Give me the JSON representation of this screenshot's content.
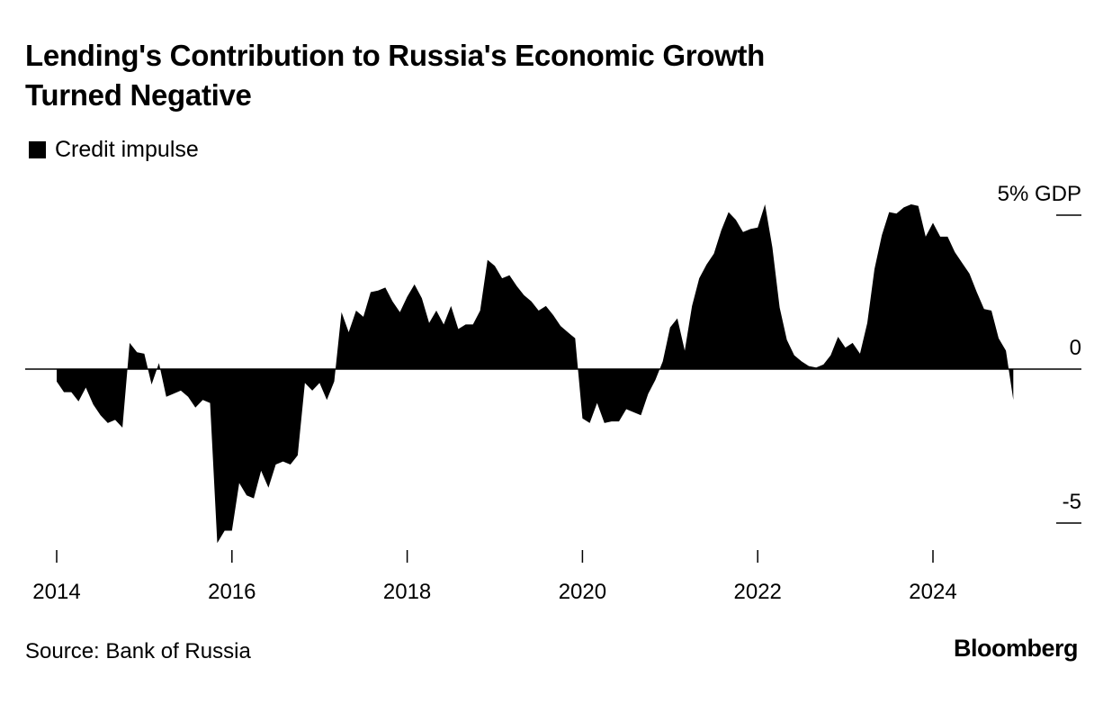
{
  "header": {
    "title_line1": "Lending's Contribution to Russia's Economic Growth",
    "title_line2": "Turned Negative"
  },
  "footer": {
    "source": "Source: Bank of Russia",
    "brand": "Bloomberg"
  },
  "chart_data": {
    "type": "area",
    "title": "Lending's Contribution to Russia's Economic Growth Turned Negative",
    "legend": [
      {
        "name": "Credit impulse",
        "color": "#000000"
      }
    ],
    "legend_position": "top-left",
    "ylabel": "% GDP",
    "ylim": [
      -6.3,
      5.5
    ],
    "yticks": [
      {
        "value": 5,
        "label": "5% GDP"
      },
      {
        "value": 0,
        "label": "0"
      },
      {
        "value": -5,
        "label": "-5"
      }
    ],
    "xlim": [
      2013.65,
      2025.6
    ],
    "xticks": [
      {
        "value": 2014,
        "label": "2014"
      },
      {
        "value": 2016,
        "label": "2016"
      },
      {
        "value": 2018,
        "label": "2018"
      },
      {
        "value": 2020,
        "label": "2020"
      },
      {
        "value": 2022,
        "label": "2022"
      },
      {
        "value": 2024,
        "label": "2024"
      }
    ],
    "axis_position": "right",
    "grid": false,
    "series": [
      {
        "name": "Credit impulse",
        "color": "#000000",
        "x": [
          2014.0,
          2014.083,
          2014.167,
          2014.25,
          2014.333,
          2014.417,
          2014.5,
          2014.583,
          2014.667,
          2014.75,
          2014.833,
          2014.917,
          2015.0,
          2015.083,
          2015.167,
          2015.25,
          2015.333,
          2015.417,
          2015.5,
          2015.583,
          2015.667,
          2015.75,
          2015.833,
          2015.917,
          2016.0,
          2016.083,
          2016.167,
          2016.25,
          2016.333,
          2016.417,
          2016.5,
          2016.583,
          2016.667,
          2016.75,
          2016.833,
          2016.917,
          2017.0,
          2017.083,
          2017.167,
          2017.25,
          2017.333,
          2017.417,
          2017.5,
          2017.583,
          2017.667,
          2017.75,
          2017.833,
          2017.917,
          2018.0,
          2018.083,
          2018.167,
          2018.25,
          2018.333,
          2018.417,
          2018.5,
          2018.583,
          2018.667,
          2018.75,
          2018.833,
          2018.917,
          2019.0,
          2019.083,
          2019.167,
          2019.25,
          2019.333,
          2019.417,
          2019.5,
          2019.583,
          2019.667,
          2019.75,
          2019.833,
          2019.917,
          2020.0,
          2020.083,
          2020.167,
          2020.25,
          2020.333,
          2020.417,
          2020.5,
          2020.583,
          2020.667,
          2020.75,
          2020.833,
          2020.917,
          2021.0,
          2021.083,
          2021.167,
          2021.25,
          2021.333,
          2021.417,
          2021.5,
          2021.583,
          2021.667,
          2021.75,
          2021.833,
          2021.917,
          2022.0,
          2022.083,
          2022.167,
          2022.25,
          2022.333,
          2022.417,
          2022.5,
          2022.583,
          2022.667,
          2022.75,
          2022.833,
          2022.917,
          2023.0,
          2023.083,
          2023.167,
          2023.25,
          2023.333,
          2023.417,
          2023.5,
          2023.583,
          2023.667,
          2023.75,
          2023.833,
          2023.917,
          2024.0,
          2024.083,
          2024.167,
          2024.25,
          2024.333,
          2024.417,
          2024.5,
          2024.583,
          2024.667,
          2024.75,
          2024.833,
          2024.917
        ],
        "values": [
          -0.4,
          -0.75,
          -0.75,
          -1.05,
          -0.6,
          -1.15,
          -1.5,
          -1.75,
          -1.65,
          -1.9,
          0.85,
          0.55,
          0.5,
          -0.5,
          0.2,
          -0.9,
          -0.8,
          -0.7,
          -0.9,
          -1.25,
          -1.0,
          -1.1,
          -5.65,
          -5.25,
          -5.25,
          -3.7,
          -4.1,
          -4.2,
          -3.3,
          -3.85,
          -3.1,
          -3.0,
          -3.1,
          -2.8,
          -0.45,
          -0.7,
          -0.45,
          -1.0,
          -0.4,
          1.85,
          1.2,
          1.9,
          1.7,
          2.5,
          2.55,
          2.65,
          2.2,
          1.85,
          2.35,
          2.75,
          2.3,
          1.5,
          1.9,
          1.45,
          2.05,
          1.3,
          1.45,
          1.45,
          1.9,
          3.55,
          3.35,
          2.95,
          3.05,
          2.7,
          2.4,
          2.2,
          1.9,
          2.05,
          1.75,
          1.4,
          1.2,
          1.0,
          -1.6,
          -1.75,
          -1.1,
          -1.75,
          -1.7,
          -1.7,
          -1.3,
          -1.4,
          -1.5,
          -0.8,
          -0.35,
          0.25,
          1.35,
          1.65,
          0.6,
          2.05,
          2.95,
          3.4,
          3.75,
          4.5,
          5.1,
          4.85,
          4.45,
          4.55,
          4.6,
          5.35,
          3.95,
          2.0,
          0.95,
          0.45,
          0.25,
          0.1,
          0.05,
          0.15,
          0.45,
          1.05,
          0.7,
          0.85,
          0.5,
          1.5,
          3.25,
          4.35,
          5.1,
          5.05,
          5.25,
          5.35,
          5.3,
          4.3,
          4.75,
          4.3,
          4.3,
          3.8,
          3.45,
          3.1,
          2.5,
          1.95,
          1.9,
          1.0,
          0.6,
          -1.0
        ]
      }
    ]
  }
}
